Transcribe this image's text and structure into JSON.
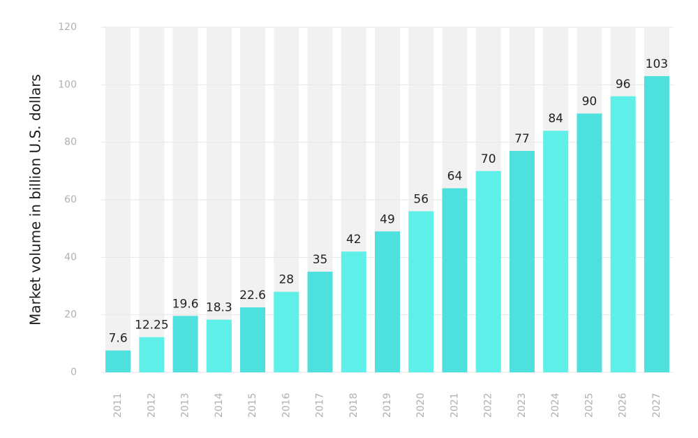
{
  "chart_data": {
    "type": "bar",
    "ylabel": "Market volume in billion U.S. dollars",
    "xlabel": "",
    "categories": [
      "2011",
      "2012",
      "2013",
      "2014",
      "2015",
      "2016",
      "2017",
      "2018",
      "2019",
      "2020",
      "2021",
      "2022",
      "2023",
      "2024",
      "2025",
      "2026",
      "2027"
    ],
    "values": [
      7.6,
      12.25,
      19.6,
      18.3,
      22.6,
      28,
      35,
      42,
      49,
      56,
      64,
      70,
      77,
      84,
      90,
      96,
      103
    ],
    "value_labels": [
      "7.6",
      "12.25",
      "19.6",
      "18.3",
      "22.6",
      "28",
      "35",
      "42",
      "49",
      "56",
      "64",
      "70",
      "77",
      "84",
      "90",
      "96",
      "103"
    ],
    "ylim": [
      0,
      120
    ],
    "yticks": [
      0,
      20,
      40,
      60,
      80,
      100,
      120
    ],
    "grid": true,
    "colors": {
      "bar_dark": "#4de0dc",
      "bar_light": "#5ef0e8",
      "column_background": "#f1f1f1"
    }
  }
}
